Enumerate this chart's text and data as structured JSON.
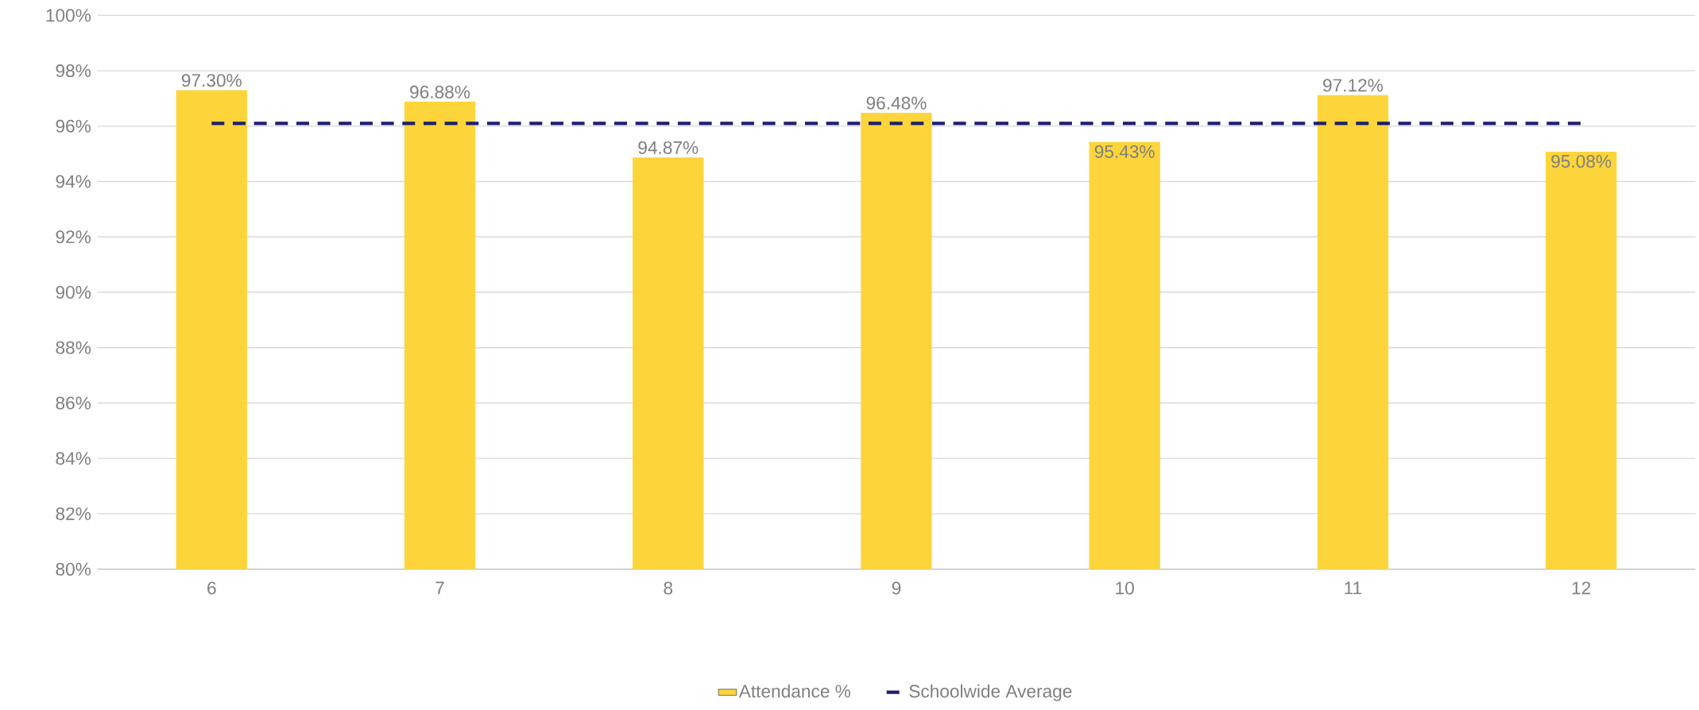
{
  "chart_data": {
    "type": "bar",
    "categories": [
      "6",
      "7",
      "8",
      "9",
      "10",
      "11",
      "12"
    ],
    "series": [
      {
        "name": "Attendance %",
        "color": "#fdd53b",
        "values": [
          97.3,
          96.88,
          94.87,
          96.48,
          95.43,
          97.12,
          95.08
        ],
        "value_labels": [
          "97.30%",
          "96.88%",
          "94.87%",
          "96.48%",
          "95.43%",
          "97.12%",
          "95.08%"
        ]
      },
      {
        "name": "Schoolwide Average",
        "type": "line",
        "color": "#1f1f6e",
        "line_style": "dashed",
        "values": [
          96.1,
          96.1,
          96.1,
          96.1,
          96.1,
          96.1,
          96.1
        ]
      }
    ],
    "ylim": [
      80,
      100
    ],
    "yticks": [
      {
        "value": 80,
        "label": "80%"
      },
      {
        "value": 82,
        "label": "82%"
      },
      {
        "value": 84,
        "label": "84%"
      },
      {
        "value": 86,
        "label": "86%"
      },
      {
        "value": 88,
        "label": "88%"
      },
      {
        "value": 90,
        "label": "90%"
      },
      {
        "value": 92,
        "label": "92%"
      },
      {
        "value": 94,
        "label": "94%"
      },
      {
        "value": 96,
        "label": "96%"
      },
      {
        "value": 98,
        "label": "98%"
      },
      {
        "value": 100,
        "label": "100%"
      }
    ],
    "grid": "y",
    "legend": "bottom"
  }
}
